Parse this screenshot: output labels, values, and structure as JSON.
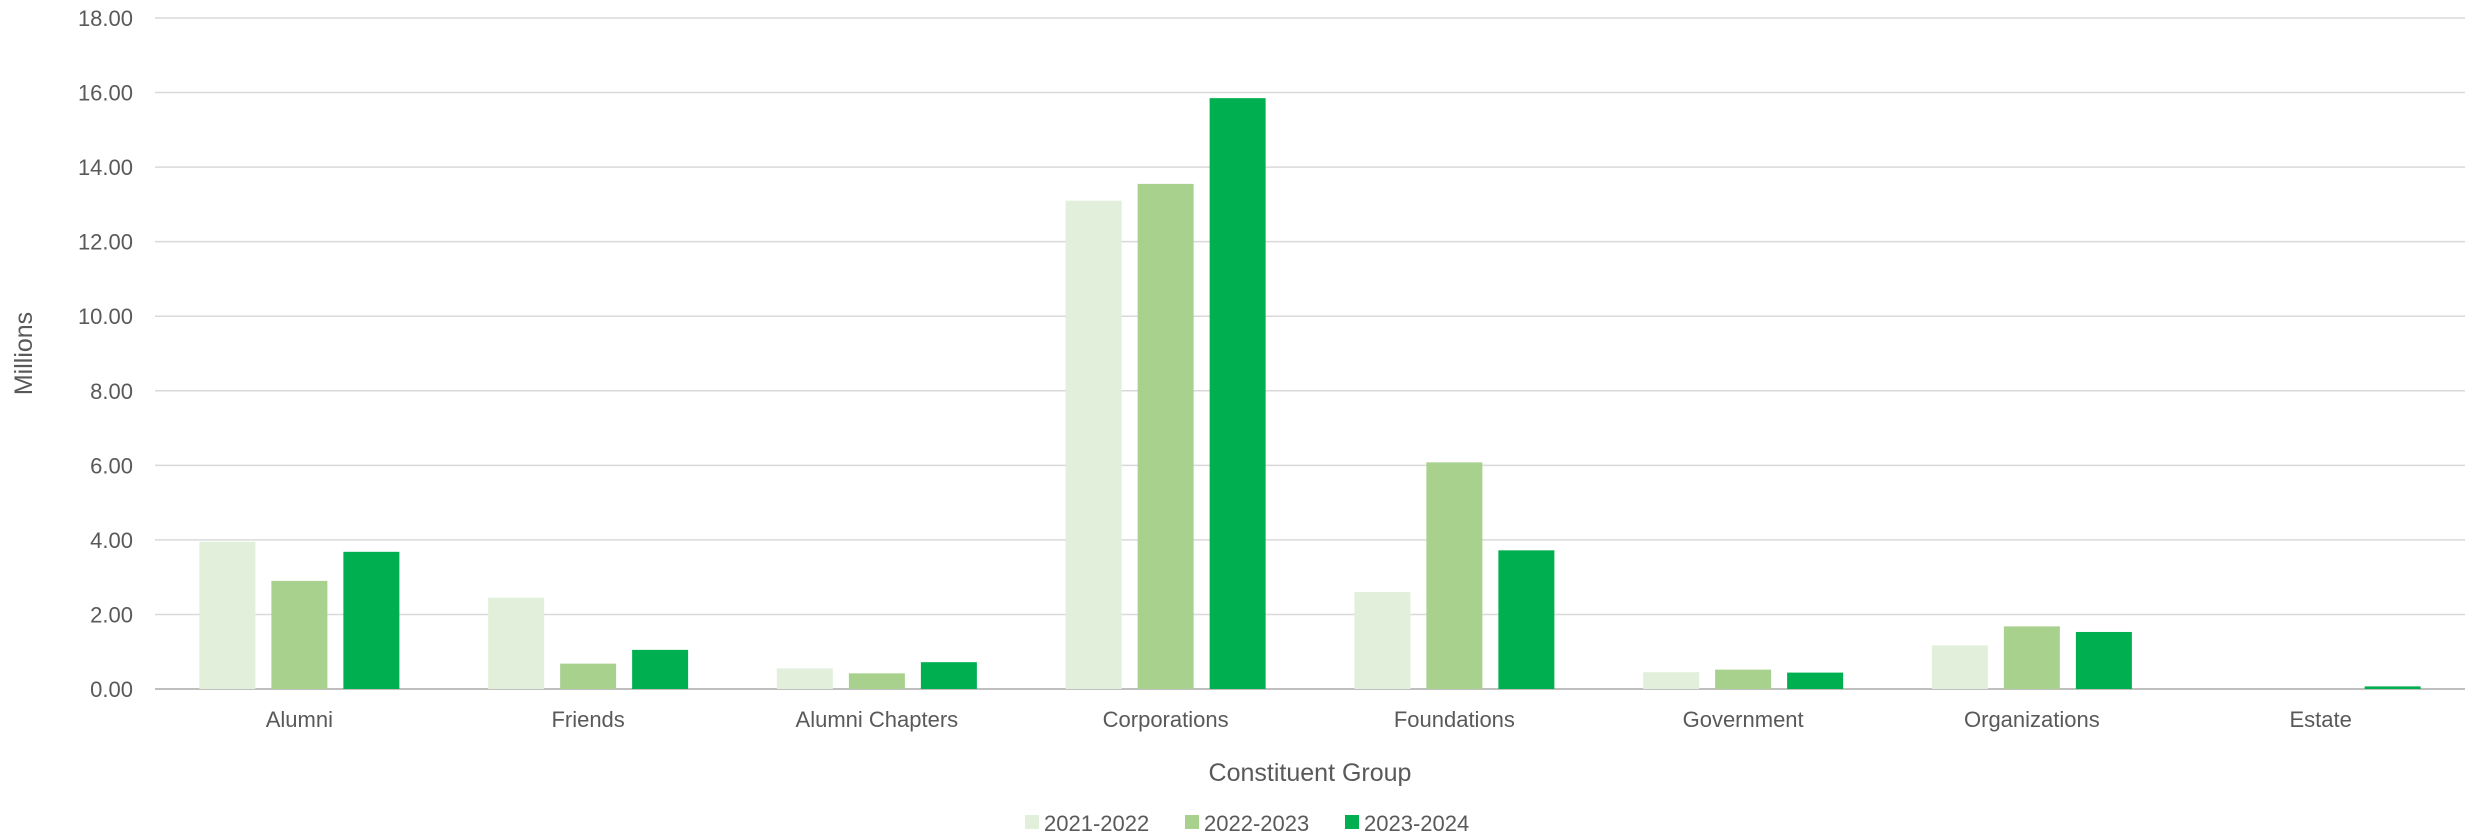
{
  "chart_data": {
    "type": "bar",
    "title": "",
    "xlabel": "Constituent Group",
    "ylabel": "Millions",
    "ylim": [
      0,
      18
    ],
    "yticks": [
      "0.00",
      "2.00",
      "4.00",
      "6.00",
      "8.00",
      "10.00",
      "12.00",
      "14.00",
      "16.00",
      "18.00"
    ],
    "grid": true,
    "legend_position": "bottom",
    "categories": [
      "Alumni",
      "Friends",
      "Alumni Chapters",
      "Corporations",
      "Foundations",
      "Government",
      "Organizations",
      "Estate"
    ],
    "series": [
      {
        "name": "2021-2022",
        "color": "#e2efda",
        "values": [
          3.95,
          2.45,
          0.55,
          13.1,
          2.6,
          0.45,
          1.17,
          0.0
        ]
      },
      {
        "name": "2022-2023",
        "color": "#a9d18e",
        "values": [
          2.9,
          0.68,
          0.42,
          13.55,
          6.08,
          0.52,
          1.68,
          0.0
        ]
      },
      {
        "name": "2023-2024",
        "color": "#00b050",
        "values": [
          3.68,
          1.05,
          0.72,
          15.85,
          3.72,
          0.44,
          1.53,
          0.07
        ]
      }
    ]
  }
}
